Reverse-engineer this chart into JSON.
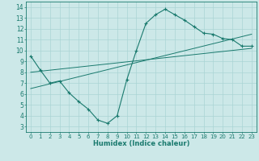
{
  "xlabel": "Humidex (Indice chaleur)",
  "bg_color": "#cce8e8",
  "line_color": "#1a7a6e",
  "grid_color": "#aad4d4",
  "xlim": [
    -0.5,
    23.5
  ],
  "ylim": [
    2.5,
    14.5
  ],
  "xticks": [
    0,
    1,
    2,
    3,
    4,
    5,
    6,
    7,
    8,
    9,
    10,
    11,
    12,
    13,
    14,
    15,
    16,
    17,
    18,
    19,
    20,
    21,
    22,
    23
  ],
  "yticks": [
    3,
    4,
    5,
    6,
    7,
    8,
    9,
    10,
    11,
    12,
    13,
    14
  ],
  "curve_x": [
    0,
    1,
    2,
    3,
    4,
    5,
    6,
    7,
    8,
    9,
    10,
    11,
    12,
    13,
    14,
    15,
    16,
    17,
    18,
    19,
    20,
    21,
    22,
    23
  ],
  "curve_y": [
    9.5,
    8.2,
    7.0,
    7.2,
    6.1,
    5.3,
    4.6,
    3.6,
    3.3,
    4.0,
    7.3,
    10.0,
    12.5,
    13.3,
    13.8,
    13.3,
    12.8,
    12.2,
    11.6,
    11.5,
    11.1,
    11.0,
    10.4,
    10.4
  ],
  "line1_x": [
    0,
    23
  ],
  "line1_y": [
    8.0,
    10.2
  ],
  "line2_x": [
    0,
    23
  ],
  "line2_y": [
    6.5,
    11.5
  ],
  "tick_fontsize": 5.0,
  "xlabel_fontsize": 6.0
}
